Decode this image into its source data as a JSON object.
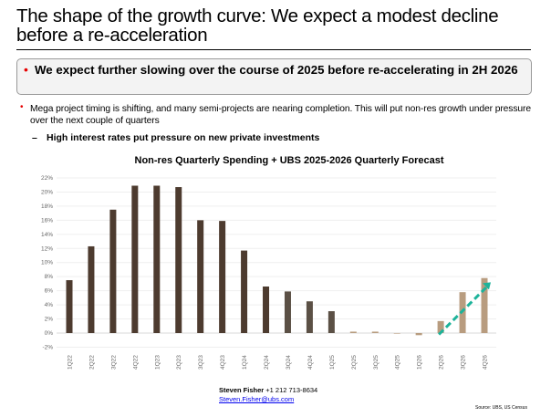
{
  "slide": {
    "title": "The shape of the growth curve: We expect a modest decline before a re-acceleration",
    "key_point": "We expect further slowing over the course of 2025 before re-accelerating in 2H 2026",
    "bullet": "Mega project timing is shifting, and many semi-projects are nearing completion. This will put non-res growth under pressure over the next couple of quarters",
    "sub_bullet_marker": "–",
    "sub_bullet": "High interest rates put pressure on new private investments"
  },
  "footer": {
    "author_name": "Steven Fisher",
    "author_phone": "+1 212 713-8634",
    "email": "Steven.Fisher@ubs.com",
    "source": "Source: UBS, US Census"
  },
  "colors": {
    "accent": "#e60000",
    "actual": "#4d3b2f",
    "recent": "#5b5045",
    "forecast": "#b89c7f",
    "arrow": "#1db39a"
  },
  "chart_data": {
    "type": "bar",
    "title": "Non-res Quarterly Spending + UBS 2025-2026 Quarterly Forecast",
    "xlabel": "",
    "ylabel": "",
    "ylim": [
      -2,
      22
    ],
    "yticks": [
      "-2%",
      "0%",
      "2%",
      "4%",
      "6%",
      "8%",
      "10%",
      "12%",
      "14%",
      "16%",
      "18%",
      "20%",
      "22%"
    ],
    "grid": true,
    "categories": [
      "1Q22",
      "2Q22",
      "3Q22",
      "4Q22",
      "1Q23",
      "2Q23",
      "3Q23",
      "4Q23",
      "1Q24",
      "2Q24",
      "3Q24",
      "4Q24",
      "1Q25",
      "2Q25",
      "3Q25",
      "4Q25",
      "1Q26",
      "2Q26",
      "3Q26",
      "4Q26"
    ],
    "values": [
      7.5,
      12.3,
      17.5,
      20.9,
      20.9,
      20.7,
      16.0,
      15.9,
      11.7,
      6.6,
      5.9,
      4.5,
      3.1,
      0.2,
      0.2,
      0.0,
      -0.3,
      1.7,
      5.8,
      7.8
    ],
    "bar_color_groups": [
      "actual",
      "actual",
      "actual",
      "actual",
      "actual",
      "actual",
      "actual",
      "actual",
      "actual",
      "actual",
      "recent",
      "recent",
      "recent",
      "forecast",
      "forecast",
      "forecast",
      "forecast",
      "forecast",
      "forecast",
      "forecast"
    ],
    "annotation": "dashed-arrow-up from 2Q26 to 4Q26"
  }
}
